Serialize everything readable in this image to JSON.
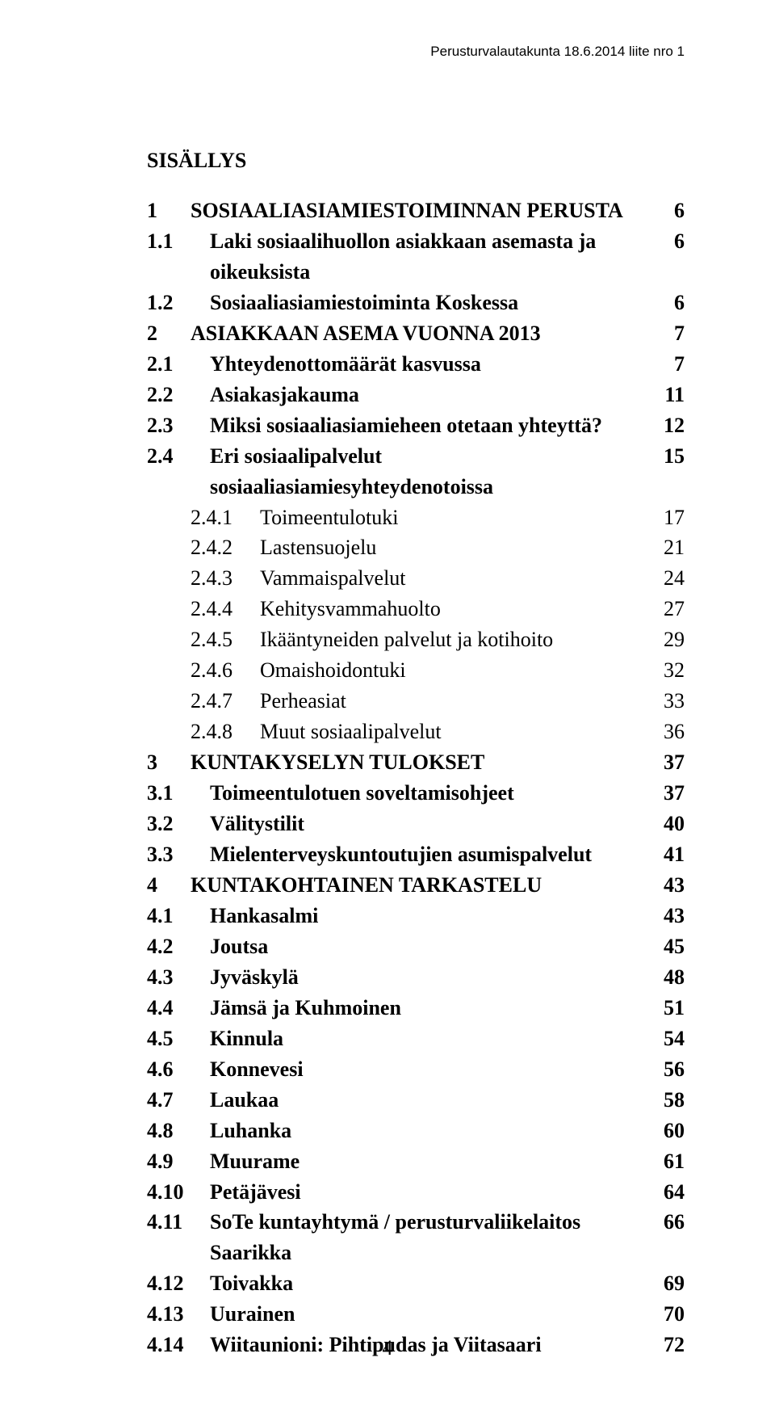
{
  "running_head": "Perusturvalautakunta 18.6.2014 liite nro 1",
  "toc_title": "SISÄLLYS",
  "footer_page": "4",
  "entries": [
    {
      "lvl": 1,
      "num": "1",
      "label": "SOSIAALIASIAMIESTOIMINNAN PERUSTA",
      "page": "6",
      "bold": true
    },
    {
      "lvl": 2,
      "num": "1.1",
      "label": "Laki sosiaalihuollon asiakkaan asemasta ja oikeuksista",
      "page": "6",
      "bold": true
    },
    {
      "lvl": 2,
      "num": "1.2",
      "label": "Sosiaaliasiamiestoiminta Koskessa",
      "page": "6",
      "bold": true
    },
    {
      "lvl": 1,
      "num": "2",
      "label": "ASIAKKAAN ASEMA VUONNA 2013",
      "page": "7",
      "bold": true
    },
    {
      "lvl": 2,
      "num": "2.1",
      "label": "Yhteydenottomäärät kasvussa",
      "page": "7",
      "bold": true
    },
    {
      "lvl": 2,
      "num": "2.2",
      "label": "Asiakasjakauma",
      "page": "11",
      "bold": true
    },
    {
      "lvl": 2,
      "num": "2.3",
      "label": "Miksi sosiaaliasiamieheen otetaan yhteyttä?",
      "page": "12",
      "bold": true
    },
    {
      "lvl": 2,
      "num": "2.4",
      "label": "Eri sosiaalipalvelut sosiaaliasiamiesyhteydenotoissa",
      "page": "15",
      "bold": true
    },
    {
      "lvl": 3,
      "num": "2.4.1",
      "label": "Toimeentulotuki",
      "page": "17",
      "bold": false
    },
    {
      "lvl": 3,
      "num": "2.4.2",
      "label": "Lastensuojelu",
      "page": "21",
      "bold": false
    },
    {
      "lvl": 3,
      "num": "2.4.3",
      "label": "Vammaispalvelut",
      "page": "24",
      "bold": false
    },
    {
      "lvl": 3,
      "num": "2.4.4",
      "label": "Kehitysvammahuolto",
      "page": "27",
      "bold": false
    },
    {
      "lvl": 3,
      "num": "2.4.5",
      "label": "Ikääntyneiden palvelut ja kotihoito",
      "page": "29",
      "bold": false
    },
    {
      "lvl": 3,
      "num": "2.4.6",
      "label": "Omaishoidontuki",
      "page": "32",
      "bold": false
    },
    {
      "lvl": 3,
      "num": "2.4.7",
      "label": "Perheasiat",
      "page": "33",
      "bold": false
    },
    {
      "lvl": 3,
      "num": "2.4.8",
      "label": "Muut sosiaalipalvelut",
      "page": "36",
      "bold": false
    },
    {
      "lvl": 1,
      "num": "3",
      "label": "KUNTAKYSELYN TULOKSET",
      "page": "37",
      "bold": true
    },
    {
      "lvl": 2,
      "num": "3.1",
      "label": "Toimeentulotuen soveltamisohjeet",
      "page": "37",
      "bold": true
    },
    {
      "lvl": 2,
      "num": "3.2",
      "label": "Välitystilit",
      "page": "40",
      "bold": true
    },
    {
      "lvl": 2,
      "num": "3.3",
      "label": "Mielenterveyskuntoutujien asumispalvelut",
      "page": "41",
      "bold": true
    },
    {
      "lvl": 1,
      "num": "4",
      "label": "KUNTAKOHTAINEN TARKASTELU",
      "page": "43",
      "bold": true
    },
    {
      "lvl": 2,
      "num": "4.1",
      "label": "Hankasalmi",
      "page": "43",
      "bold": true
    },
    {
      "lvl": 2,
      "num": "4.2",
      "label": "Joutsa",
      "page": "45",
      "bold": true
    },
    {
      "lvl": 2,
      "num": "4.3",
      "label": "Jyväskylä",
      "page": "48",
      "bold": true
    },
    {
      "lvl": 2,
      "num": "4.4",
      "label": "Jämsä ja Kuhmoinen",
      "page": "51",
      "bold": true
    },
    {
      "lvl": 2,
      "num": "4.5",
      "label": "Kinnula",
      "page": "54",
      "bold": true
    },
    {
      "lvl": 2,
      "num": "4.6",
      "label": "Konnevesi",
      "page": "56",
      "bold": true
    },
    {
      "lvl": 2,
      "num": "4.7",
      "label": "Laukaa",
      "page": "58",
      "bold": true
    },
    {
      "lvl": 2,
      "num": "4.8",
      "label": "Luhanka",
      "page": "60",
      "bold": true
    },
    {
      "lvl": 2,
      "num": "4.9",
      "label": "Muurame",
      "page": "61",
      "bold": true
    },
    {
      "lvl": 2,
      "num": "4.10",
      "label": "Petäjävesi",
      "page": "64",
      "bold": true
    },
    {
      "lvl": 2,
      "num": "4.11",
      "label": "SoTe kuntayhtymä / perusturvaliikelaitos Saarikka",
      "page": "66",
      "bold": true
    },
    {
      "lvl": 2,
      "num": "4.12",
      "label": "Toivakka",
      "page": "69",
      "bold": true
    },
    {
      "lvl": 2,
      "num": "4.13",
      "label": "Uurainen",
      "page": "70",
      "bold": true
    },
    {
      "lvl": 2,
      "num": "4.14",
      "label": "Wiitaunioni: Pihtipudas ja Viitasaari",
      "page": "72",
      "bold": true
    }
  ]
}
